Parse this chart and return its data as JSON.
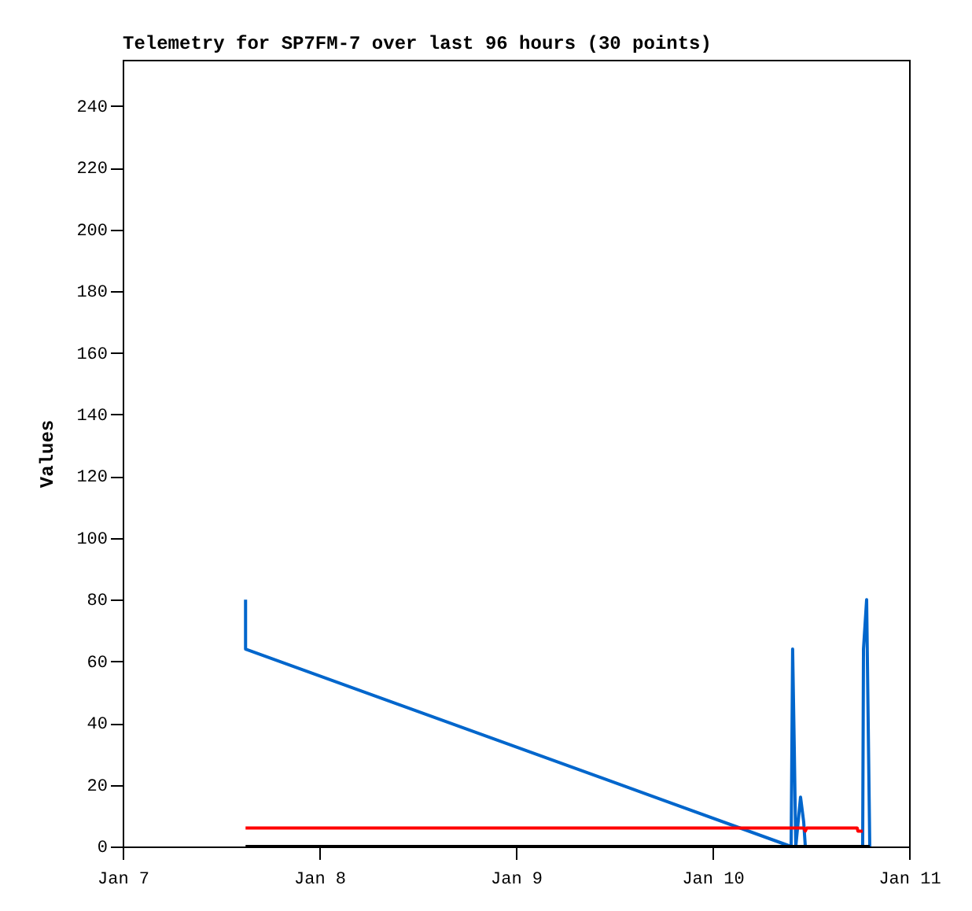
{
  "chart_data": {
    "type": "line",
    "title": "Telemetry for SP7FM-7 over last 96 hours (30 points)",
    "ylabel": "Values",
    "xlim": [
      "--01-07",
      "--01-11"
    ],
    "xticks": [
      {
        "value": "--01-07",
        "label": "Jan 7"
      },
      {
        "value": "--01-08",
        "label": "Jan 8"
      },
      {
        "value": "--01-09",
        "label": "Jan 9"
      },
      {
        "value": "--01-10",
        "label": "Jan 10"
      },
      {
        "value": "--01-11",
        "label": "Jan 11"
      }
    ],
    "ylim": [
      0,
      255
    ],
    "yticks": [
      0,
      20,
      40,
      60,
      80,
      100,
      120,
      140,
      160,
      180,
      200,
      220,
      240
    ],
    "grid": false,
    "legend": false,
    "line_style": "solid",
    "marker": "none",
    "series": [
      {
        "color": "#0066cc",
        "x": [
          "--01-07T15:00",
          "--01-07T15:00",
          "--01-10T09:36",
          "--01-10T09:47",
          "--01-10T09:59",
          "--01-10T10:10",
          "--01-10T10:45",
          "--01-10T11:08",
          "--01-10T11:20",
          "--01-10T18:20",
          "--01-10T18:26",
          "--01-10T18:49",
          "--01-10T19:12"
        ],
        "values": [
          80,
          64,
          0,
          64,
          32,
          0,
          16,
          8,
          0,
          0,
          64,
          80,
          0
        ]
      },
      {
        "color": "#ff0000",
        "x": [
          "--01-07T15:00",
          "--01-10T11:08",
          "--01-10T11:20",
          "--01-10T11:30",
          "--01-10T17:40",
          "--01-10T17:45",
          "--01-10T18:20"
        ],
        "values": [
          6,
          6,
          5,
          6,
          6,
          5,
          5
        ]
      },
      {
        "color": "#000000",
        "x": [
          "--01-07T15:00",
          "--01-10T19:12"
        ],
        "values": [
          0,
          0
        ]
      }
    ]
  }
}
